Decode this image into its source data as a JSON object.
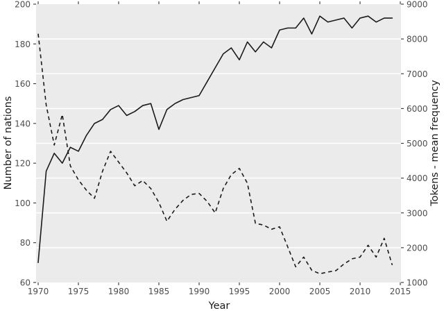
{
  "figure": {
    "xlabel": "Year",
    "ylabel_left": "Number of nations",
    "ylabel_right": "Tokens - mean frequency"
  },
  "axes": {
    "x": {
      "min": 1970,
      "max": 2015,
      "ticks": [
        1970,
        1975,
        1980,
        1985,
        1990,
        1995,
        2000,
        2005,
        2010,
        2015
      ]
    },
    "y_left": {
      "min": 60,
      "max": 200,
      "ticks": [
        60,
        80,
        100,
        120,
        140,
        160,
        180,
        200
      ]
    },
    "y_right": {
      "min": 1000,
      "max": 9000,
      "ticks": [
        1000,
        2000,
        3000,
        4000,
        5000,
        6000,
        7000,
        8000,
        9000
      ]
    }
  },
  "colors": {
    "panel_bg": "#ebebeb",
    "grid": "#ffffff",
    "line": "#1a1a1a",
    "tick": "#333333",
    "tick_label": "#4d4d4d",
    "axis_title": "#1a1a1a"
  },
  "chart_data": {
    "type": "line",
    "title": "",
    "xlabel": "Year",
    "ylabel_left": "Number of nations",
    "ylabel_right": "Tokens - mean frequency",
    "x_range": [
      1970,
      2015
    ],
    "y_left_range": [
      60,
      200
    ],
    "y_right_range": [
      1000,
      9000
    ],
    "grid": "horizontal-white-on-gray",
    "legend": "none",
    "x": [
      1970,
      1971,
      1972,
      1973,
      1974,
      1975,
      1976,
      1977,
      1978,
      1979,
      1980,
      1981,
      1982,
      1983,
      1984,
      1985,
      1986,
      1987,
      1988,
      1989,
      1990,
      1991,
      1992,
      1993,
      1994,
      1995,
      1996,
      1997,
      1998,
      1999,
      2000,
      2001,
      2002,
      2003,
      2004,
      2005,
      2006,
      2007,
      2008,
      2009,
      2010,
      2011,
      2012,
      2013,
      2014
    ],
    "series": [
      {
        "name": "Number of nations",
        "axis": "left",
        "style": "solid",
        "values": [
          70,
          116,
          125,
          120,
          128,
          126,
          134,
          140,
          142,
          147,
          149,
          144,
          146,
          149,
          150,
          137,
          147,
          150,
          152,
          153,
          154,
          161,
          168,
          175,
          178,
          172,
          181,
          176,
          181,
          178,
          187,
          188,
          188,
          193,
          185,
          194,
          191,
          192,
          193,
          188,
          193,
          194,
          191,
          193,
          193
        ]
      },
      {
        "name": "Tokens - mean frequency",
        "axis": "right",
        "style": "dashed",
        "values": [
          8150,
          6100,
          4950,
          5830,
          4350,
          3950,
          3650,
          3420,
          4200,
          4770,
          4460,
          4150,
          3780,
          3930,
          3700,
          3300,
          2760,
          3100,
          3360,
          3530,
          3560,
          3330,
          3000,
          3700,
          4100,
          4280,
          3850,
          2700,
          2650,
          2530,
          2600,
          2030,
          1450,
          1730,
          1350,
          1250,
          1300,
          1340,
          1530,
          1680,
          1730,
          2070,
          1730,
          2270,
          1500
        ]
      }
    ]
  },
  "layout_note": "dual y-axis line chart, gray panel, white horizontal gridlines, ticks on all four sides"
}
